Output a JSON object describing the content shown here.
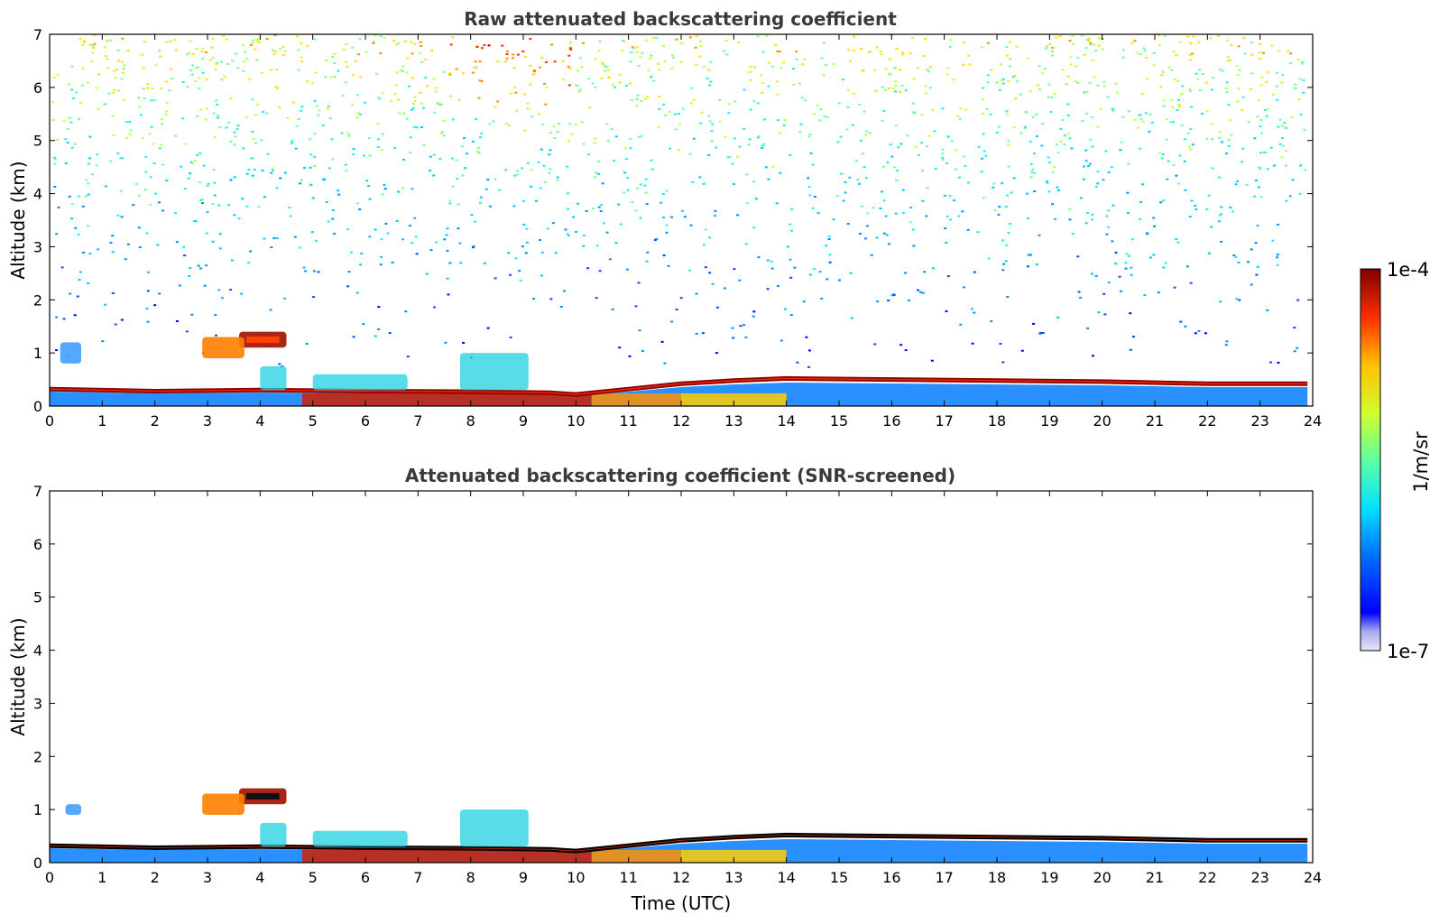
{
  "chart_data": [
    {
      "type": "heatmap",
      "title": "Raw attenuated backscattering coefficient",
      "xlabel": "",
      "ylabel": "Altitude (km)",
      "xlim": [
        0,
        24
      ],
      "ylim": [
        0,
        7
      ],
      "x_ticks": [
        "0",
        "1",
        "2",
        "3",
        "4",
        "5",
        "6",
        "7",
        "8",
        "9",
        "10",
        "11",
        "12",
        "13",
        "14",
        "15",
        "16",
        "17",
        "18",
        "19",
        "20",
        "21",
        "22",
        "23",
        "24"
      ],
      "y_ticks": [
        "0",
        "1",
        "2",
        "3",
        "4",
        "5",
        "6",
        "7"
      ],
      "noise_background": true,
      "features": [
        {
          "kind": "boundary_layer_top",
          "t": [
            0,
            2,
            4,
            6,
            8,
            9.5,
            10,
            11,
            12,
            13,
            14,
            16,
            18,
            20,
            22,
            23.9
          ],
          "z": [
            0.32,
            0.28,
            0.3,
            0.28,
            0.27,
            0.25,
            0.22,
            0.32,
            0.42,
            0.48,
            0.52,
            0.5,
            0.48,
            0.46,
            0.42,
            0.42
          ]
        },
        {
          "kind": "cloud",
          "t_start": 3.6,
          "t_end": 4.5,
          "z_bottom": 1.1,
          "z_top": 1.4,
          "intensity": "high"
        },
        {
          "kind": "cloud",
          "t_start": 2.9,
          "t_end": 3.7,
          "z_bottom": 0.9,
          "z_top": 1.3,
          "intensity": "medium"
        },
        {
          "kind": "cloud",
          "t_start": 0.2,
          "t_end": 0.6,
          "z_bottom": 0.8,
          "z_top": 1.2,
          "intensity": "low"
        },
        {
          "kind": "aerosol_plume",
          "t_start": 4.0,
          "t_end": 4.5,
          "z_bottom": 0.3,
          "z_top": 0.75
        },
        {
          "kind": "aerosol_plume",
          "t_start": 7.8,
          "t_end": 9.1,
          "z_bottom": 0.3,
          "z_top": 1.0
        },
        {
          "kind": "aerosol_plume",
          "t_start": 5.0,
          "t_end": 6.8,
          "z_bottom": 0.3,
          "z_top": 0.6
        }
      ]
    },
    {
      "type": "heatmap",
      "title": "Attenuated backscattering coefficient (SNR-screened)",
      "xlabel": "Time (UTC)",
      "ylabel": "Altitude (km)",
      "xlim": [
        0,
        24
      ],
      "ylim": [
        0,
        7
      ],
      "x_ticks": [
        "0",
        "1",
        "2",
        "3",
        "4",
        "5",
        "6",
        "7",
        "8",
        "9",
        "10",
        "11",
        "12",
        "13",
        "14",
        "15",
        "16",
        "17",
        "18",
        "19",
        "20",
        "21",
        "22",
        "23",
        "24"
      ],
      "y_ticks": [
        "0",
        "1",
        "2",
        "3",
        "4",
        "5",
        "6",
        "7"
      ],
      "noise_background": false,
      "features": [
        {
          "kind": "boundary_layer_top",
          "t": [
            0,
            2,
            4,
            6,
            8,
            9.5,
            10,
            11,
            12,
            13,
            14,
            16,
            18,
            20,
            22,
            23.9
          ],
          "z": [
            0.32,
            0.28,
            0.3,
            0.28,
            0.27,
            0.25,
            0.22,
            0.32,
            0.42,
            0.48,
            0.52,
            0.5,
            0.48,
            0.46,
            0.42,
            0.42
          ]
        },
        {
          "kind": "cloud",
          "t_start": 3.6,
          "t_end": 4.5,
          "z_bottom": 1.1,
          "z_top": 1.4,
          "intensity": "high"
        },
        {
          "kind": "cloud",
          "t_start": 2.9,
          "t_end": 3.7,
          "z_bottom": 0.9,
          "z_top": 1.3,
          "intensity": "medium"
        },
        {
          "kind": "cloud",
          "t_start": 0.3,
          "t_end": 0.6,
          "z_bottom": 0.9,
          "z_top": 1.1,
          "intensity": "low"
        },
        {
          "kind": "aerosol_plume",
          "t_start": 4.0,
          "t_end": 4.5,
          "z_bottom": 0.3,
          "z_top": 0.75
        },
        {
          "kind": "aerosol_plume",
          "t_start": 7.8,
          "t_end": 9.1,
          "z_bottom": 0.3,
          "z_top": 1.0
        },
        {
          "kind": "aerosol_plume",
          "t_start": 5.0,
          "t_end": 6.8,
          "z_bottom": 0.3,
          "z_top": 0.6
        }
      ]
    }
  ],
  "colorbar": {
    "max_label": "1e-4",
    "min_label": "1e-7",
    "label": "1/m/sr",
    "colormap": "jet",
    "min_color": "#e8e8f8"
  }
}
